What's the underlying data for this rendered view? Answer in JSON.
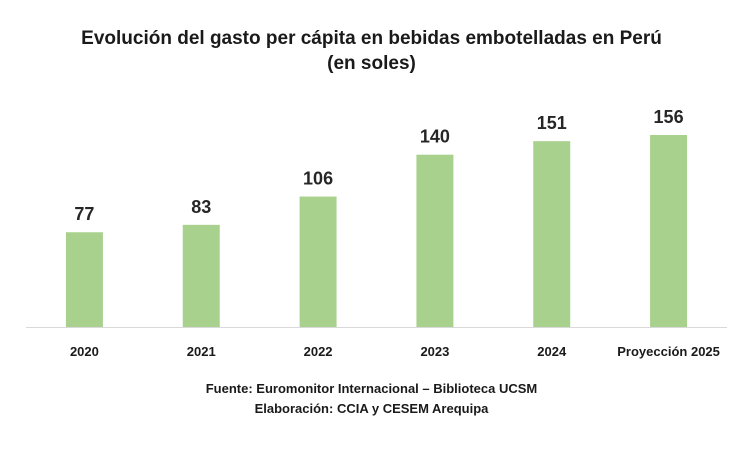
{
  "chart_data": {
    "type": "bar",
    "title_line1": "Evolución del gasto per cápita en bebidas embotelladas en Perú",
    "title_line2": "(en soles)",
    "categories": [
      "2020",
      "2021",
      "2022",
      "2023",
      "2024",
      "Proyección 2025"
    ],
    "values": [
      77,
      83,
      106,
      140,
      151,
      156
    ],
    "data_labels": [
      "77",
      "83",
      "106",
      "140",
      "151",
      "156"
    ],
    "xlabel": "",
    "ylabel": "",
    "ylim": [
      0,
      156
    ],
    "grid": false,
    "legend": "none",
    "bar_color": "#A9D18E",
    "axis_color": "#D9D9D9"
  },
  "footer": {
    "source": "Fuente: Euromonitor Internacional – Biblioteca UCSM",
    "credit": "Elaboración: CCIA y CESEM Arequipa"
  }
}
